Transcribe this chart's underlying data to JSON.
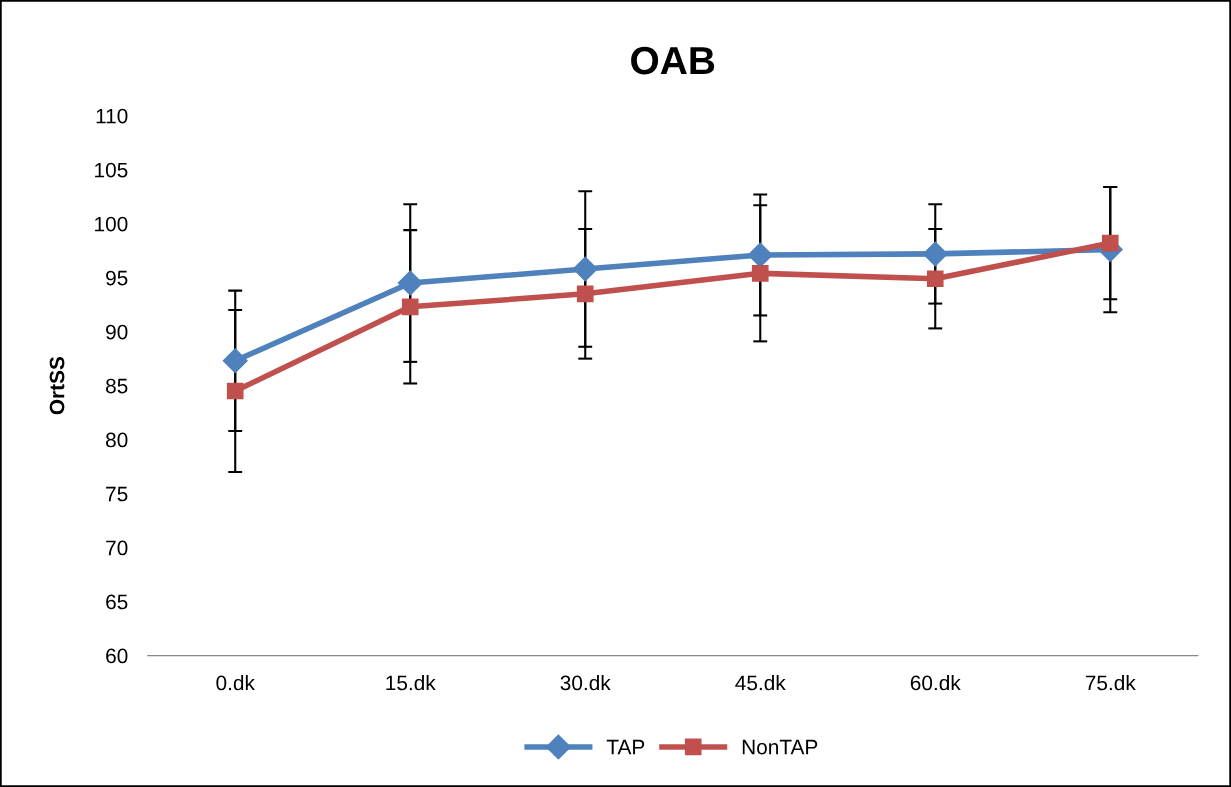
{
  "chart_data": {
    "type": "line",
    "title": "OAB",
    "ylabel": "OrtSS",
    "categories": [
      "0.dk",
      "15.dk",
      "30.dk",
      "45.dk",
      "60.dk",
      "75.dk"
    ],
    "series": [
      {
        "name": "TAP",
        "color": "#4f81bd",
        "marker": "diamond",
        "values": [
          87.3,
          94.5,
          95.8,
          97.1,
          97.2,
          97.6
        ],
        "errors": [
          6.5,
          7.3,
          7.2,
          5.6,
          4.6,
          5.8
        ]
      },
      {
        "name": "NonTAP",
        "color": "#c0504d",
        "marker": "square",
        "values": [
          84.5,
          92.3,
          93.5,
          95.4,
          94.9,
          98.2
        ],
        "errors": [
          7.5,
          7.1,
          6.0,
          6.3,
          4.6,
          5.2
        ]
      }
    ],
    "ylim": [
      60,
      110
    ],
    "yticks": [
      60,
      65,
      70,
      75,
      80,
      85,
      90,
      95,
      100,
      105,
      110
    ],
    "grid": false,
    "legend": "bottom",
    "line_style": "solid"
  }
}
